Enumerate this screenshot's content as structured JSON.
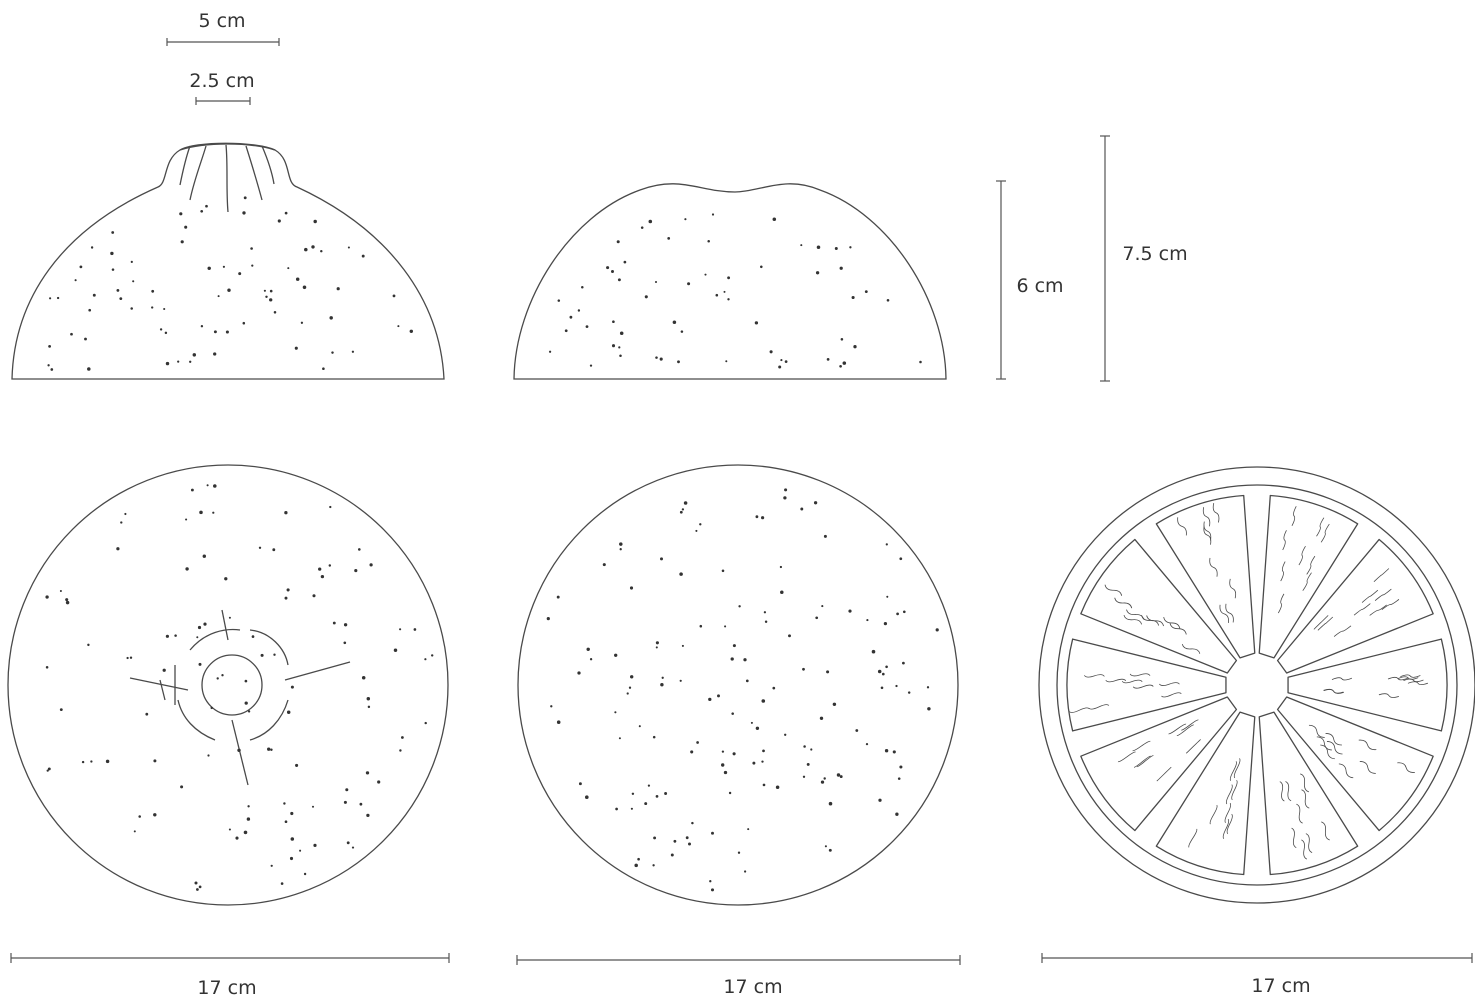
{
  "dimensions": {
    "stem_outer": "5 cm",
    "stem_inner": "2.5 cm",
    "height_small": "6 cm",
    "height_large": "7.5 cm",
    "width_left": "17 cm",
    "width_middle": "17 cm",
    "width_right": "17 cm"
  },
  "colors": {
    "line": "#4a4a4a",
    "dot": "#333333"
  }
}
